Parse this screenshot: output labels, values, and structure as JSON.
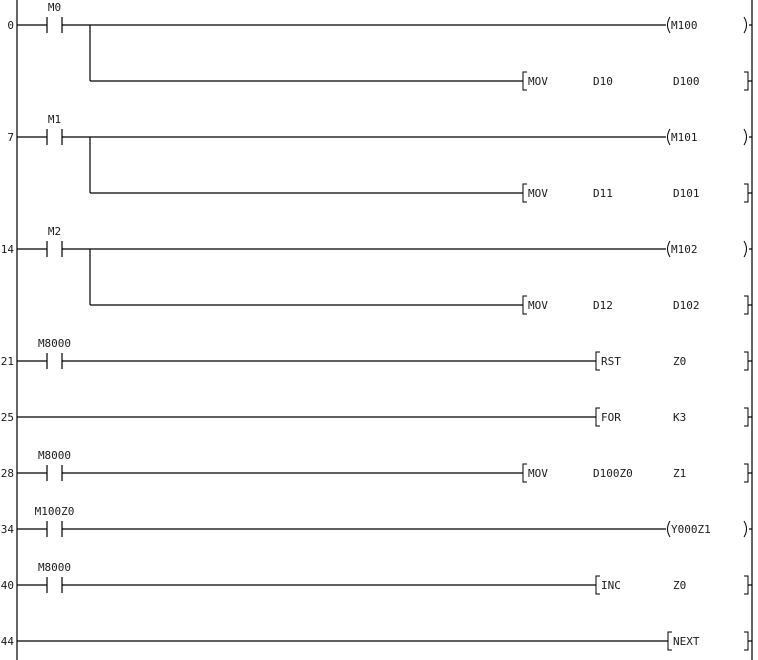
{
  "rungs": [
    {
      "step": "0",
      "contact": "M0",
      "output": {
        "kind": "coil",
        "name": "M100"
      },
      "branch": {
        "kind": "instr",
        "name": "MOV",
        "ops": [
          "D10",
          "D100"
        ]
      }
    },
    {
      "step": "7",
      "contact": "M1",
      "output": {
        "kind": "coil",
        "name": "M101"
      },
      "branch": {
        "kind": "instr",
        "name": "MOV",
        "ops": [
          "D11",
          "D101"
        ]
      }
    },
    {
      "step": "14",
      "contact": "M2",
      "output": {
        "kind": "coil",
        "name": "M102"
      },
      "branch": {
        "kind": "instr",
        "name": "MOV",
        "ops": [
          "D12",
          "D102"
        ]
      }
    },
    {
      "step": "21",
      "contact": "M8000",
      "output": {
        "kind": "instr",
        "name": "RST",
        "ops": [
          "Z0"
        ]
      }
    },
    {
      "step": "25",
      "contact": null,
      "output": {
        "kind": "instr",
        "name": "FOR",
        "ops": [
          "K3"
        ]
      }
    },
    {
      "step": "28",
      "contact": "M8000",
      "output": {
        "kind": "instr",
        "name": "MOV",
        "ops": [
          "D100Z0",
          "Z1"
        ]
      }
    },
    {
      "step": "34",
      "contact": "M100Z0",
      "output": {
        "kind": "coil",
        "name": "Y000Z1"
      }
    },
    {
      "step": "40",
      "contact": "M8000",
      "output": {
        "kind": "instr",
        "name": "INC",
        "ops": [
          "Z0"
        ]
      }
    },
    {
      "step": "44",
      "contact": null,
      "output": {
        "kind": "instr",
        "name": "NEXT",
        "ops": []
      }
    }
  ]
}
